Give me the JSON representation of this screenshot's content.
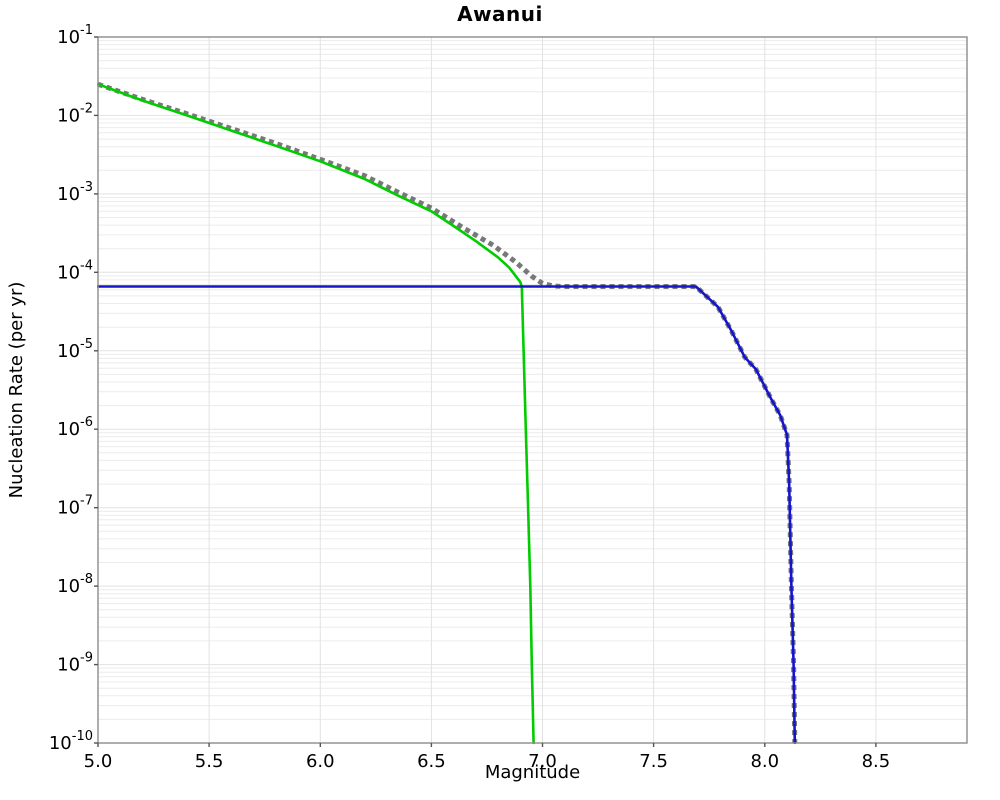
{
  "title": "Awanui",
  "axes": {
    "xlabel": "Magnitude",
    "ylabel": "Nucleation Rate (per yr)"
  },
  "chart_data": {
    "type": "line",
    "title": "Awanui",
    "xlabel": "Magnitude",
    "ylabel": "Nucleation Rate (per yr)",
    "xlim": [
      5.0,
      8.91
    ],
    "ylim": [
      1e-10,
      0.1
    ],
    "yscale": "log",
    "grid": true,
    "legend": "none",
    "xticks": [
      5.0,
      5.5,
      6.0,
      6.5,
      7.0,
      7.5,
      8.0,
      8.5
    ],
    "ytick_exponents": [
      -1,
      -2,
      -3,
      -4,
      -5,
      -6,
      -7,
      -8,
      -9,
      -10
    ],
    "series": [
      {
        "name": "gray-dotted-curve",
        "color": "#787878",
        "style": "dotted",
        "width": 5,
        "points": [
          [
            5.0,
            0.025
          ],
          [
            5.2,
            0.016
          ],
          [
            5.4,
            0.0105
          ],
          [
            5.6,
            0.0068
          ],
          [
            5.8,
            0.0044
          ],
          [
            6.0,
            0.00275
          ],
          [
            6.2,
            0.0017
          ],
          [
            6.35,
            0.00105
          ],
          [
            6.5,
            0.00066
          ],
          [
            6.65,
            0.00036
          ],
          [
            6.78,
            0.00022
          ],
          [
            6.88,
            0.000135
          ],
          [
            6.95,
            9e-05
          ],
          [
            7.0,
            7.2e-05
          ],
          [
            7.05,
            6.7e-05
          ],
          [
            7.1,
            6.6e-05
          ],
          [
            7.69,
            6.6e-05
          ],
          [
            7.75,
            4.6e-05
          ],
          [
            7.79,
            3.6e-05
          ],
          [
            7.85,
            1.8e-05
          ],
          [
            7.91,
            8.3e-06
          ],
          [
            7.96,
            5.8e-06
          ],
          [
            8.03,
            2.4e-06
          ],
          [
            8.07,
            1.5e-06
          ],
          [
            8.1,
            8.5e-07
          ],
          [
            8.11,
            2e-07
          ],
          [
            8.12,
            1e-08
          ],
          [
            8.13,
            1e-09
          ],
          [
            8.135,
            1e-10
          ]
        ]
      },
      {
        "name": "green-solid-curve",
        "color": "#00cc00",
        "style": "solid",
        "width": 2.6,
        "points": [
          [
            5.0,
            0.025
          ],
          [
            5.2,
            0.0155
          ],
          [
            5.4,
            0.01
          ],
          [
            5.6,
            0.0064
          ],
          [
            5.8,
            0.0041
          ],
          [
            6.0,
            0.0026
          ],
          [
            6.2,
            0.00155
          ],
          [
            6.35,
            0.00095
          ],
          [
            6.5,
            0.0006
          ],
          [
            6.6,
            0.00039
          ],
          [
            6.7,
            0.00025
          ],
          [
            6.8,
            0.000155
          ],
          [
            6.85,
            0.000115
          ],
          [
            6.9,
            7.5e-05
          ],
          [
            6.907,
            6.6e-05
          ],
          [
            6.915,
            1e-05
          ],
          [
            6.925,
            1e-06
          ],
          [
            6.935,
            1e-07
          ],
          [
            6.945,
            1e-08
          ],
          [
            6.952,
            1e-09
          ],
          [
            6.96,
            1e-10
          ]
        ]
      },
      {
        "name": "blue-solid-curve",
        "color": "#1414cc",
        "style": "solid",
        "width": 2.6,
        "points": [
          [
            5.0,
            6.6e-05
          ],
          [
            7.69,
            6.6e-05
          ],
          [
            7.75,
            4.6e-05
          ],
          [
            7.79,
            3.6e-05
          ],
          [
            7.85,
            1.8e-05
          ],
          [
            7.91,
            8.3e-06
          ],
          [
            7.96,
            5.8e-06
          ],
          [
            8.03,
            2.4e-06
          ],
          [
            8.07,
            1.5e-06
          ],
          [
            8.1,
            8.5e-07
          ],
          [
            8.11,
            2e-07
          ],
          [
            8.12,
            1e-08
          ],
          [
            8.13,
            1e-09
          ],
          [
            8.135,
            1e-10
          ]
        ]
      }
    ]
  },
  "colors": {
    "background": "#ffffff",
    "plot_background": "#ffffff",
    "frame": "#8c8c8c",
    "grid_minor": "#ececec",
    "grid_major": "#e2e2e2",
    "tick": "#555555",
    "text": "#000000",
    "series_gray": "#787878",
    "series_green": "#00cc00",
    "series_blue": "#1414cc"
  }
}
